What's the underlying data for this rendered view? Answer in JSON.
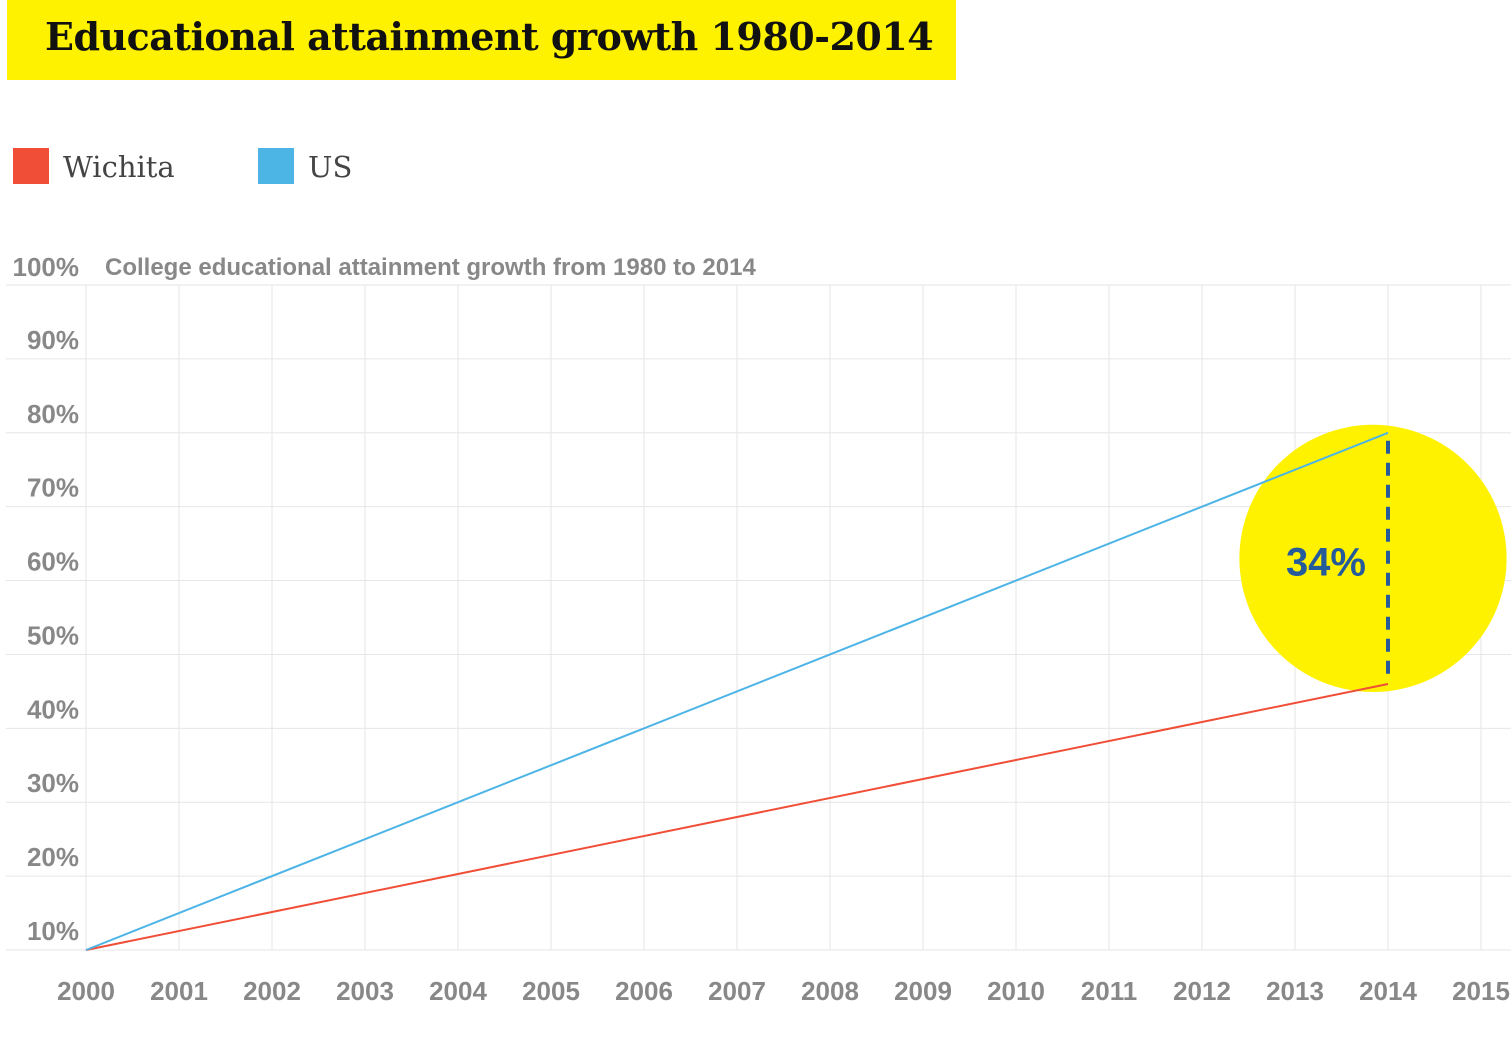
{
  "chart_data": {
    "type": "line",
    "title": "Educational attainment growth 1980-2014",
    "subtitle": "College educational attainment growth from 1980 to 2014",
    "x": [
      2000,
      2014
    ],
    "x_ticks": [
      "2000",
      "2001",
      "2002",
      "2003",
      "2004",
      "2005",
      "2006",
      "2007",
      "2008",
      "2009",
      "2010",
      "2011",
      "2012",
      "2013",
      "2014",
      "2015"
    ],
    "xlim": [
      2000,
      2015
    ],
    "ylim": [
      10,
      100
    ],
    "y_ticks": [
      "100%",
      "90%",
      "80%",
      "70%",
      "60%",
      "50%",
      "40%",
      "30%",
      "20%",
      "10%"
    ],
    "grid": true,
    "legend_position": "top-left",
    "series": [
      {
        "name": "Wichita",
        "color": "#f04e37",
        "values": [
          10,
          46
        ]
      },
      {
        "name": "US",
        "color": "#4db4e6",
        "values": [
          10,
          80
        ]
      }
    ],
    "annotation": {
      "text": "34%",
      "x": 2014,
      "from": 46,
      "to": 80,
      "highlight_color": "#fff200",
      "text_color": "#255b9b"
    }
  }
}
